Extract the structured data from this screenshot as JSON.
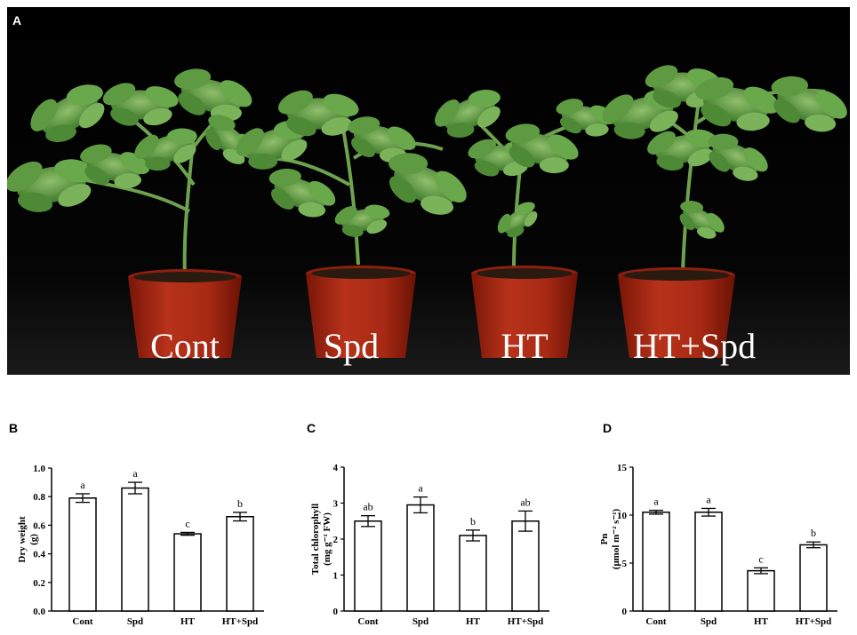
{
  "panel_a": {
    "letter": "A",
    "labels": [
      "Cont",
      "Spd",
      "HT",
      "HT+Spd"
    ]
  },
  "chart_data": [
    {
      "panel": "B",
      "type": "bar",
      "categories": [
        "Cont",
        "Spd",
        "HT",
        "HT+Spd"
      ],
      "values": [
        0.79,
        0.86,
        0.54,
        0.66
      ],
      "errors": [
        0.03,
        0.04,
        0.01,
        0.03
      ],
      "significance": [
        "a",
        "a",
        "c",
        "b"
      ],
      "ylabel_lines": [
        "Dry weight",
        "(g)"
      ],
      "ylim": [
        0,
        1.0
      ],
      "yticks": [
        "0.0",
        "0.2",
        "0.4",
        "0.6",
        "0.8",
        "1.0"
      ],
      "ytick_values": [
        0,
        0.2,
        0.4,
        0.6,
        0.8,
        1.0
      ]
    },
    {
      "panel": "C",
      "type": "bar",
      "categories": [
        "Cont",
        "Spd",
        "HT",
        "HT+Spd"
      ],
      "values": [
        2.5,
        2.95,
        2.1,
        2.5
      ],
      "errors": [
        0.15,
        0.22,
        0.15,
        0.28
      ],
      "significance": [
        "ab",
        "a",
        "b",
        "ab"
      ],
      "ylabel_lines": [
        "Total chlorophyll",
        "(mg g⁻¹ FW)"
      ],
      "ylim": [
        0,
        4
      ],
      "yticks": [
        "0",
        "1",
        "2",
        "3",
        "4"
      ],
      "ytick_values": [
        0,
        1,
        2,
        3,
        4
      ]
    },
    {
      "panel": "D",
      "type": "bar",
      "categories": [
        "Cont",
        "Spd",
        "HT",
        "HT+Spd"
      ],
      "values": [
        10.3,
        10.3,
        4.2,
        6.9
      ],
      "errors": [
        0.2,
        0.4,
        0.3,
        0.3
      ],
      "significance": [
        "a",
        "a",
        "c",
        "b"
      ],
      "ylabel_lines": [
        "Pn",
        "(μmol m⁻² s⁻¹)"
      ],
      "ylim": [
        0,
        15
      ],
      "yticks": [
        "0",
        "5",
        "10",
        "15"
      ],
      "ytick_values": [
        0,
        5,
        10,
        15
      ]
    }
  ]
}
